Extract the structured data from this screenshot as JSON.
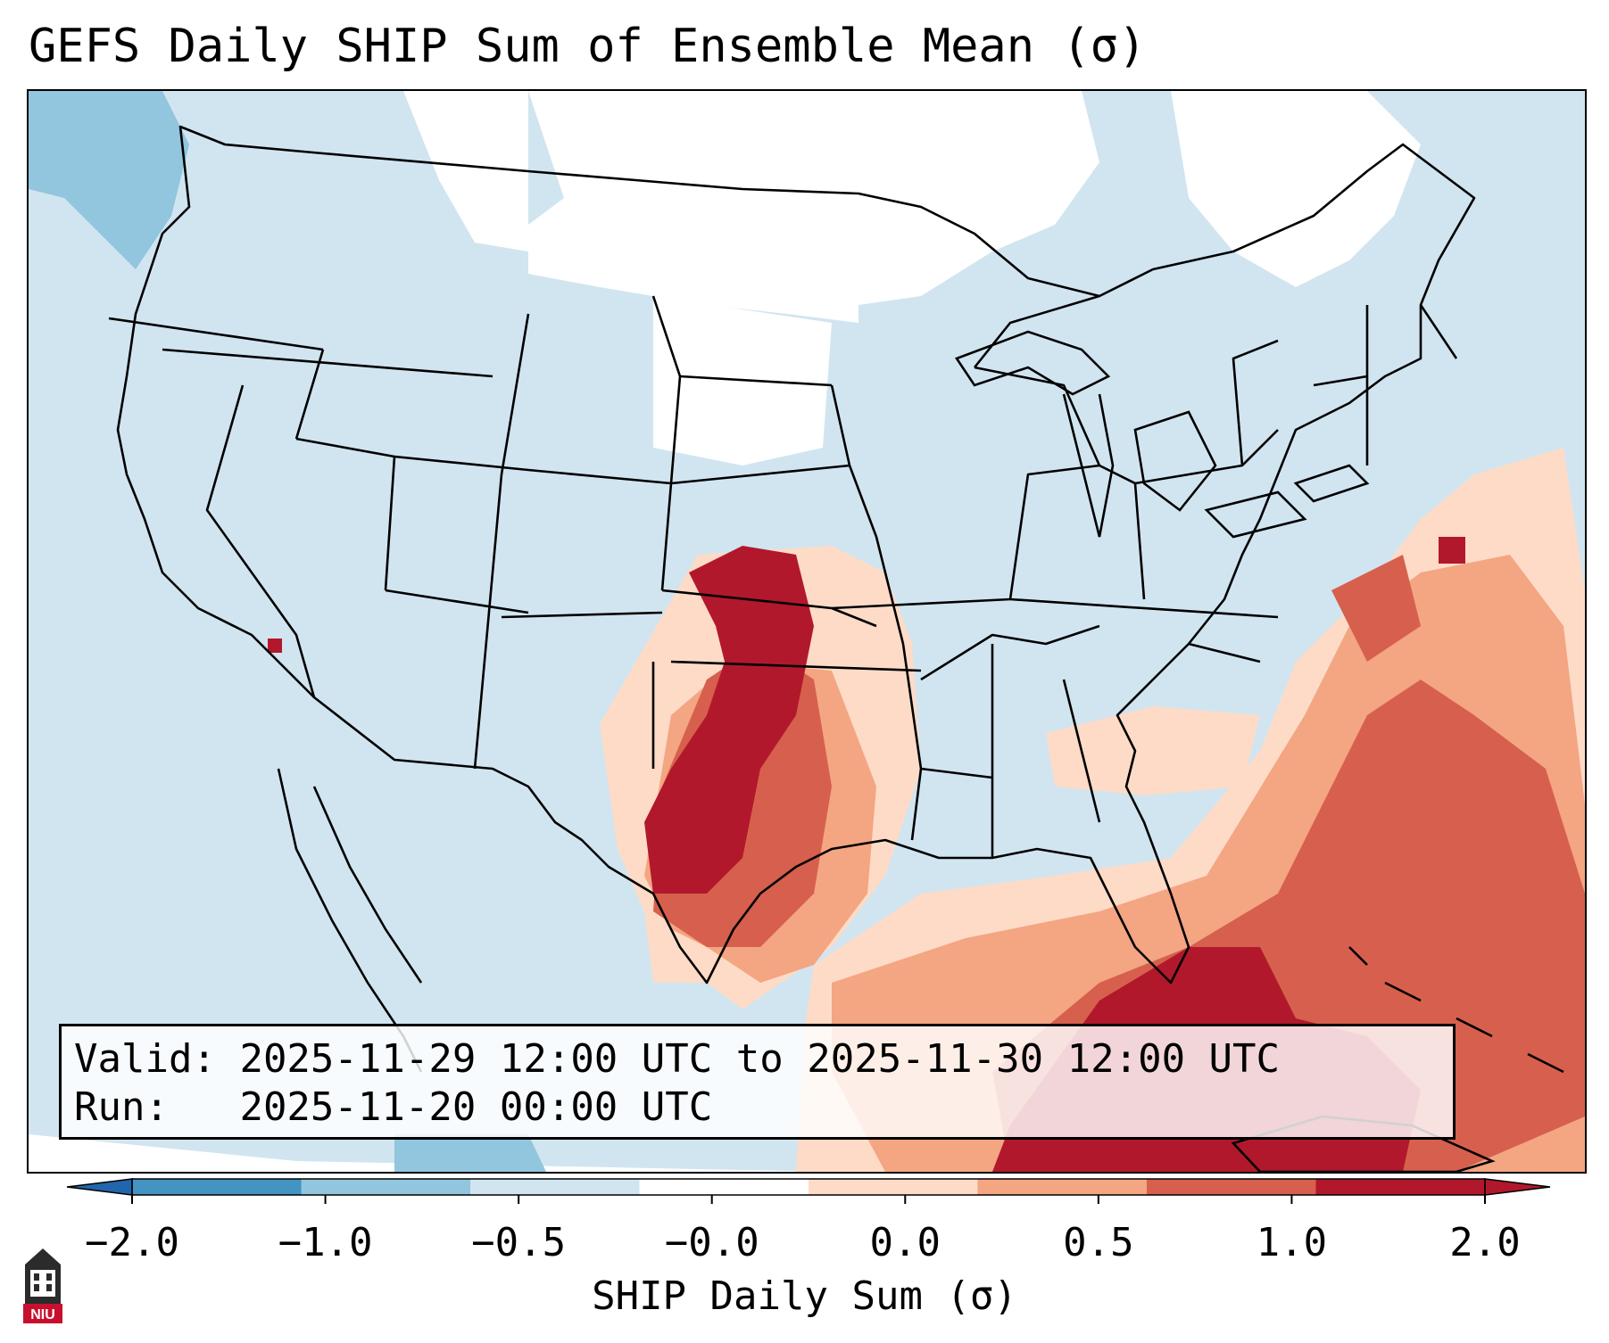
{
  "title": "GEFS Daily SHIP Sum of Ensemble Mean (σ)",
  "info": {
    "valid_label": "Valid:",
    "valid_value": "2025-11-29 12:00 UTC to 2025-11-30 12:00 UTC",
    "run_label": "Run:",
    "run_value": "2025-11-20 00:00 UTC"
  },
  "colorbar": {
    "label": "SHIP Daily Sum (σ)",
    "ticks": [
      "−2.0",
      "−1.0",
      "−0.5",
      "−0.0",
      "0.0",
      "0.5",
      "1.0",
      "2.0"
    ],
    "colors": [
      "#4393c3",
      "#92c5de",
      "#d1e5f0",
      "#ffffff",
      "#fddbc7",
      "#f4a582",
      "#d6604d",
      "#b2182b"
    ],
    "extend": "both"
  },
  "logo": {
    "text": "NIU",
    "name": "niu-logo-icon"
  },
  "map": {
    "region": "CONUS",
    "features": [
      "state-borders",
      "coastlines",
      "country-borders"
    ]
  }
}
